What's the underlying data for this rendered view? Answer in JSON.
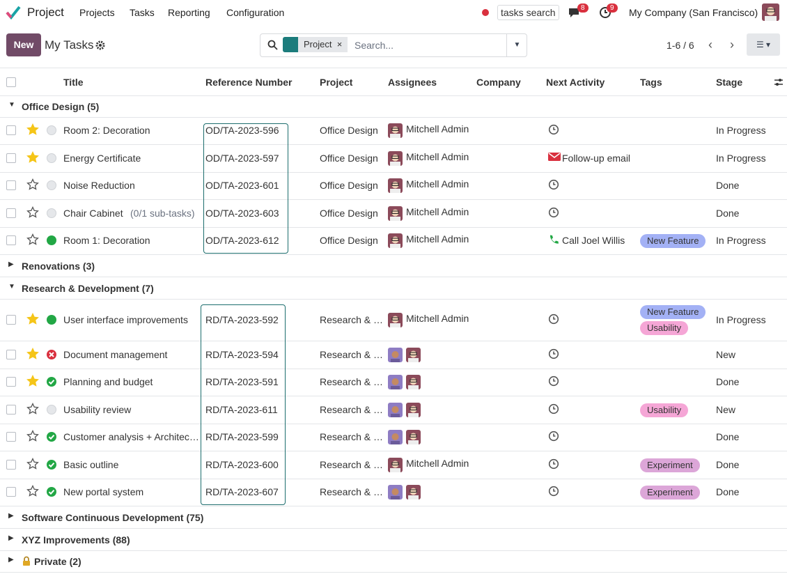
{
  "navbar": {
    "app": "Project",
    "menu": [
      "Projects",
      "Tasks",
      "Reporting",
      "Configuration"
    ],
    "search": "tasks search",
    "messages_count": 8,
    "activities_count": 9,
    "company": "My Company (San Francisco)"
  },
  "control_panel": {
    "new_button": "New",
    "breadcrumb": "My Tasks",
    "facet": "Project",
    "search_placeholder": "Search...",
    "pager": "1-6 / 6"
  },
  "table": {
    "columns": [
      "Title",
      "Reference Number",
      "Project",
      "Assignees",
      "Company",
      "Next Activity",
      "Tags",
      "Stage"
    ],
    "groups": [
      {
        "label": "Office Design (5)",
        "open": true,
        "rows": [
          {
            "title": "Room 2: Decoration",
            "reference": "OD/TA-2023-596",
            "project": "Office Design",
            "assignee": "Mitchell Admin",
            "activity": "clock",
            "tags": [],
            "stage": "In Progress",
            "starred": true,
            "state": "normal"
          },
          {
            "title": "Energy Certificate",
            "reference": "OD/TA-2023-597",
            "project": "Office Design",
            "assignee": "Mitchell Admin",
            "activity": "email",
            "activity_label": "Follow-up email",
            "tags": [],
            "stage": "In Progress",
            "starred": true,
            "state": "normal"
          },
          {
            "title": "Noise Reduction",
            "reference": "OD/TA-2023-601",
            "project": "Office Design",
            "assignee": "Mitchell Admin",
            "activity": "clock",
            "tags": [],
            "stage": "Done",
            "starred": false,
            "state": "normal"
          },
          {
            "title": "Chair Cabinet",
            "subtasks": "(0/1 sub-tasks)",
            "reference": "OD/TA-2023-603",
            "project": "Office Design",
            "assignee": "Mitchell Admin",
            "activity": "clock",
            "tags": [],
            "stage": "Done",
            "starred": false,
            "state": "normal"
          },
          {
            "title": "Room 1: Decoration",
            "reference": "OD/TA-2023-612",
            "project": "Office Design",
            "assignee": "Mitchell Admin",
            "activity": "phone",
            "activity_label": "Call Joel Willis",
            "tags": [
              {
                "label": "New Feature",
                "color": "#a3b1f5"
              }
            ],
            "stage": "In Progress",
            "starred": false,
            "state": "approved"
          }
        ]
      },
      {
        "label": "Renovations (3)",
        "open": false,
        "rows": []
      },
      {
        "label": "Research & Development (7)",
        "open": true,
        "rows": [
          {
            "title": "User interface improvements",
            "reference": "RD/TA-2023-592",
            "project": "Research & …",
            "assignee": "Mitchell Admin",
            "activity": "clock",
            "tags": [
              {
                "label": "New Feature",
                "color": "#a3b1f5"
              },
              {
                "label": "Usability",
                "color": "#f5a6d6"
              }
            ],
            "stage": "In Progress",
            "starred": true,
            "state": "approved"
          },
          {
            "title": "Document management",
            "reference": "RD/TA-2023-594",
            "project": "Research & …",
            "activity": "clock",
            "tags": [],
            "stage": "New",
            "starred": true,
            "state": "blocked"
          },
          {
            "title": "Planning and budget",
            "reference": "RD/TA-2023-591",
            "project": "Research & …",
            "activity": "clock",
            "tags": [],
            "stage": "Done",
            "starred": true,
            "state": "done"
          },
          {
            "title": "Usability review",
            "reference": "RD/TA-2023-611",
            "project": "Research & …",
            "activity": "clock",
            "tags": [
              {
                "label": "Usability",
                "color": "#f5a6d6"
              }
            ],
            "stage": "New",
            "starred": false,
            "state": "normal"
          },
          {
            "title": "Customer analysis + Architec…",
            "reference": "RD/TA-2023-599",
            "project": "Research & …",
            "activity": "clock",
            "tags": [],
            "stage": "Done",
            "starred": false,
            "state": "done"
          },
          {
            "title": "Basic outline",
            "reference": "RD/TA-2023-600",
            "project": "Research & …",
            "assignee": "Mitchell Admin",
            "activity": "clock",
            "tags": [
              {
                "label": "Experiment",
                "color": "#dca6d8"
              }
            ],
            "stage": "Done",
            "starred": false,
            "state": "done"
          },
          {
            "title": "New portal system",
            "reference": "RD/TA-2023-607",
            "project": "Research & …",
            "activity": "clock",
            "tags": [
              {
                "label": "Experiment",
                "color": "#dca6d8"
              }
            ],
            "stage": "Done",
            "starred": false,
            "state": "done"
          }
        ]
      },
      {
        "label": "Software Continuous Development (75)",
        "open": false,
        "rows": []
      },
      {
        "label": "XYZ Improvements (88)",
        "open": false,
        "rows": []
      },
      {
        "label": "Private (2)",
        "open": false,
        "locked": true,
        "rows": []
      }
    ]
  }
}
